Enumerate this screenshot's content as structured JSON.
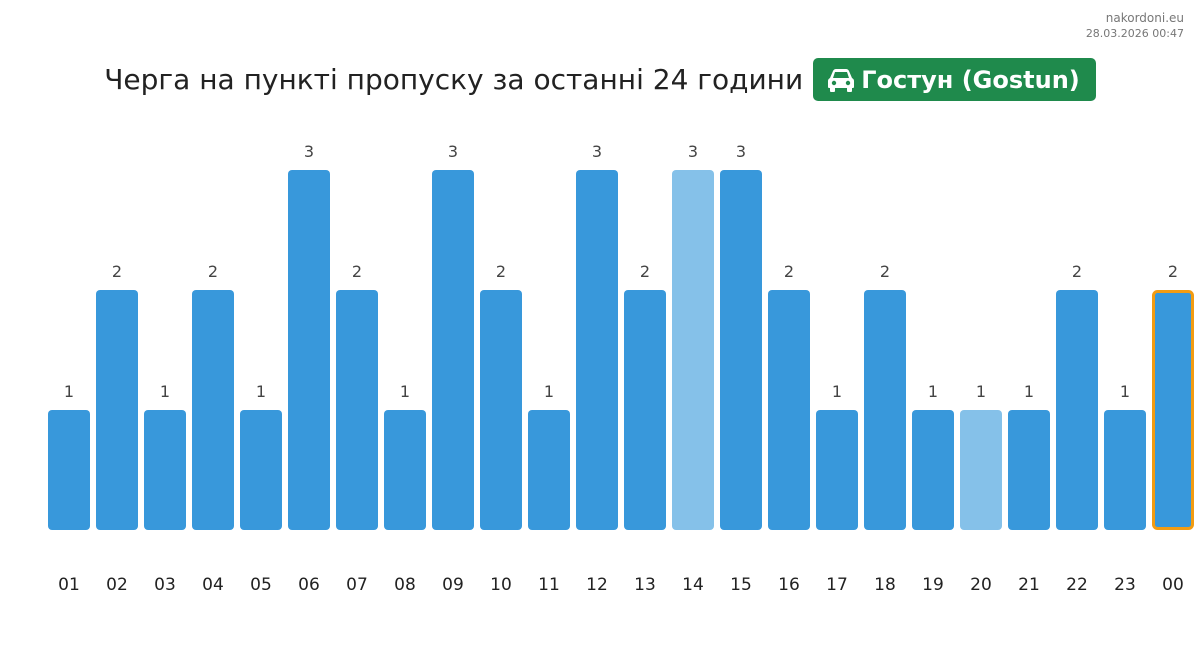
{
  "source": {
    "site": "nakordoni.eu",
    "timestamp": "28.03.2026 00:47"
  },
  "title": "Черга на пункті пропуску за останні 24 години",
  "badge": {
    "icon": "car-icon",
    "label": "Гостун (Gostun)",
    "color": "#1f8a4c"
  },
  "chart_data": {
    "type": "bar",
    "categories": [
      "01",
      "02",
      "03",
      "04",
      "05",
      "06",
      "07",
      "08",
      "09",
      "10",
      "11",
      "12",
      "13",
      "14",
      "15",
      "16",
      "17",
      "18",
      "19",
      "20",
      "21",
      "22",
      "23",
      "00"
    ],
    "values": [
      1,
      2,
      1,
      2,
      1,
      3,
      2,
      1,
      3,
      2,
      1,
      3,
      2,
      3,
      3,
      2,
      1,
      2,
      1,
      1,
      1,
      2,
      1,
      2
    ],
    "highlight": {
      "light": [
        "14",
        "20"
      ],
      "current": "00"
    },
    "ylim": [
      0,
      3
    ],
    "grid": false,
    "colors": {
      "bar": "#3898db",
      "bar_light": "#85c1e9",
      "current_outline": "#f39c12"
    }
  }
}
